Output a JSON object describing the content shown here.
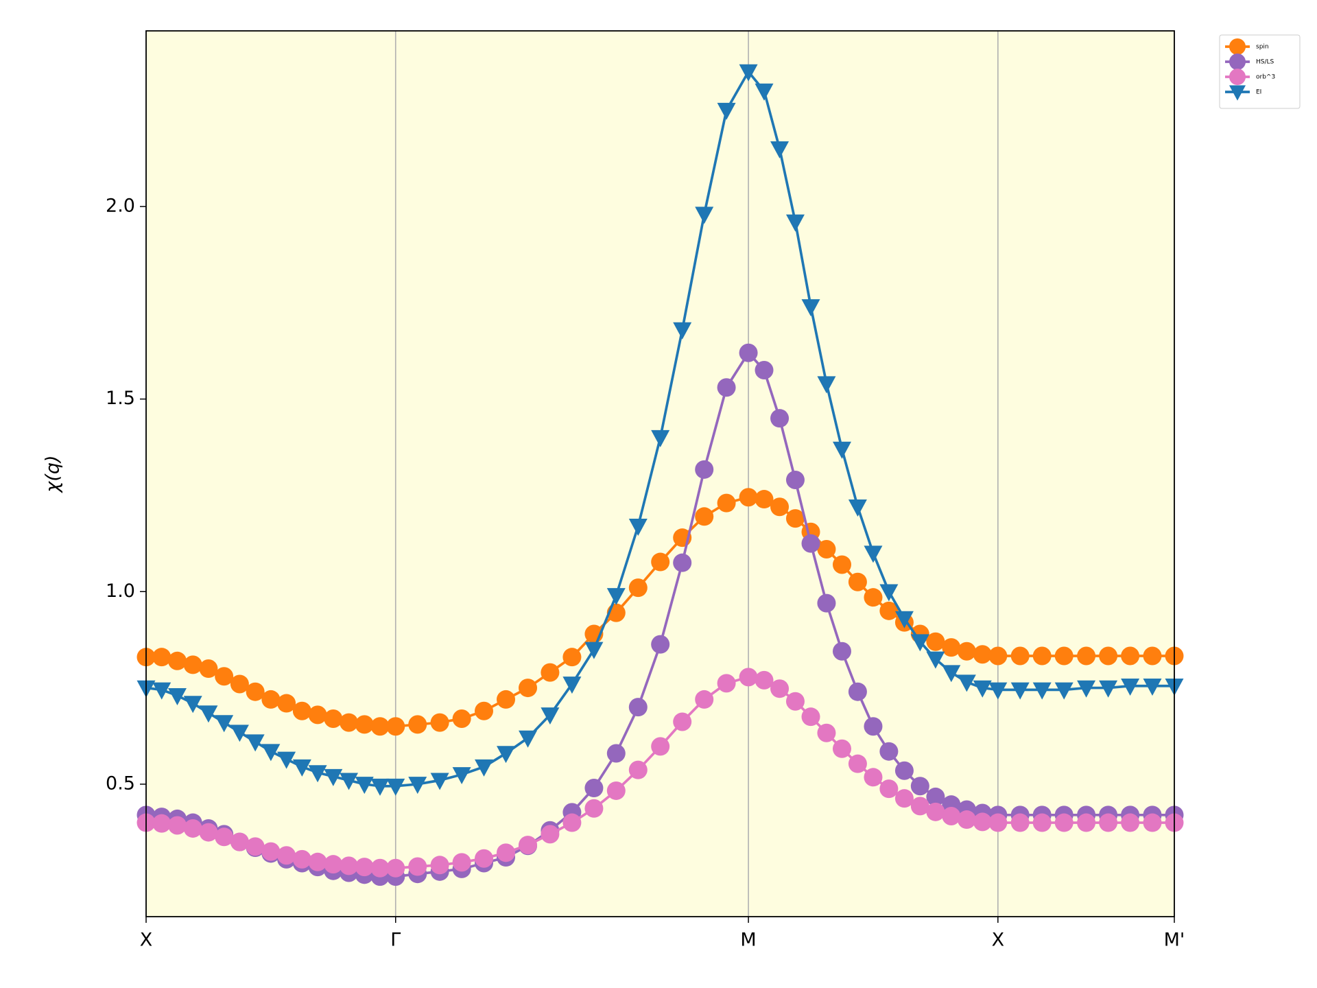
{
  "chart_data": {
    "type": "line",
    "ylabel": "χ(q)",
    "x": [
      0,
      0.0625,
      0.125,
      0.1875,
      0.25,
      0.3125,
      0.375,
      0.4375,
      0.5,
      0.5625,
      0.625,
      0.6875,
      0.75,
      0.8125,
      0.875,
      0.9375,
      1,
      1.088,
      1.177,
      1.265,
      1.354,
      1.442,
      1.53,
      1.619,
      1.707,
      1.795,
      1.884,
      1.972,
      2.061,
      2.149,
      2.237,
      2.326,
      2.414,
      2.477,
      2.539,
      2.602,
      2.664,
      2.727,
      2.789,
      2.852,
      2.914,
      2.977,
      3.039,
      3.102,
      3.164,
      3.227,
      3.289,
      3.352,
      3.414,
      3.503,
      3.591,
      3.679,
      3.768,
      3.856,
      3.944,
      4.033,
      4.121
    ],
    "series": [
      {
        "name": "spin",
        "color": "#ff7f0e",
        "marker": "circle",
        "values": [
          0.83,
          0.83,
          0.82,
          0.81,
          0.8,
          0.78,
          0.76,
          0.74,
          0.72,
          0.71,
          0.69,
          0.68,
          0.67,
          0.66,
          0.655,
          0.65,
          0.65,
          0.655,
          0.66,
          0.67,
          0.69,
          0.72,
          0.75,
          0.79,
          0.83,
          0.89,
          0.945,
          1.01,
          1.077,
          1.14,
          1.195,
          1.23,
          1.245,
          1.24,
          1.22,
          1.19,
          1.155,
          1.11,
          1.07,
          1.025,
          0.985,
          0.95,
          0.92,
          0.89,
          0.87,
          0.855,
          0.845,
          0.837,
          0.833,
          0.833,
          0.833,
          0.833,
          0.833,
          0.833,
          0.833,
          0.833,
          0.833
        ]
      },
      {
        "name": "HS/LS",
        "color": "#9467bd",
        "marker": "circle",
        "values": [
          0.42,
          0.415,
          0.41,
          0.4,
          0.385,
          0.37,
          0.35,
          0.335,
          0.32,
          0.305,
          0.295,
          0.285,
          0.275,
          0.27,
          0.265,
          0.26,
          0.26,
          0.267,
          0.273,
          0.28,
          0.295,
          0.31,
          0.34,
          0.38,
          0.427,
          0.49,
          0.58,
          0.7,
          0.863,
          1.075,
          1.317,
          1.53,
          1.62,
          1.575,
          1.45,
          1.29,
          1.125,
          0.97,
          0.845,
          0.74,
          0.65,
          0.585,
          0.535,
          0.495,
          0.467,
          0.447,
          0.434,
          0.425,
          0.42,
          0.42,
          0.42,
          0.42,
          0.42,
          0.42,
          0.42,
          0.42,
          0.42
        ]
      },
      {
        "name": "orb^3",
        "color": "#e377c2",
        "marker": "circle",
        "values": [
          0.4,
          0.398,
          0.393,
          0.385,
          0.375,
          0.363,
          0.35,
          0.338,
          0.325,
          0.315,
          0.305,
          0.298,
          0.292,
          0.288,
          0.285,
          0.282,
          0.282,
          0.286,
          0.29,
          0.297,
          0.307,
          0.322,
          0.342,
          0.37,
          0.4,
          0.437,
          0.483,
          0.537,
          0.598,
          0.662,
          0.72,
          0.762,
          0.778,
          0.77,
          0.748,
          0.715,
          0.675,
          0.633,
          0.592,
          0.553,
          0.518,
          0.488,
          0.463,
          0.443,
          0.428,
          0.417,
          0.408,
          0.402,
          0.4,
          0.4,
          0.4,
          0.4,
          0.4,
          0.4,
          0.4,
          0.4,
          0.4
        ]
      },
      {
        "name": "EI",
        "color": "#1f77b4",
        "marker": "triangle-down",
        "values": [
          0.75,
          0.745,
          0.73,
          0.71,
          0.685,
          0.66,
          0.635,
          0.61,
          0.585,
          0.565,
          0.545,
          0.53,
          0.52,
          0.51,
          0.5,
          0.495,
          0.495,
          0.5,
          0.51,
          0.525,
          0.545,
          0.58,
          0.62,
          0.68,
          0.76,
          0.85,
          0.99,
          1.17,
          1.4,
          1.68,
          1.98,
          2.25,
          2.35,
          2.3,
          2.15,
          1.96,
          1.74,
          1.54,
          1.37,
          1.22,
          1.1,
          1.0,
          0.93,
          0.87,
          0.825,
          0.79,
          0.765,
          0.75,
          0.745,
          0.745,
          0.745,
          0.745,
          0.75,
          0.75,
          0.755,
          0.755,
          0.755
        ]
      }
    ],
    "xlim": [
      0,
      4.121
    ],
    "xticks": [
      {
        "value": 0,
        "label": "X"
      },
      {
        "value": 1,
        "label": "Γ"
      },
      {
        "value": 2.414,
        "label": "M"
      },
      {
        "value": 3.414,
        "label": "X"
      },
      {
        "value": 4.121,
        "label": "M'"
      }
    ],
    "ylim": [
      0.156,
      2.456
    ],
    "yticks": [
      0.5,
      {
        "value": 1,
        "label": "1.0"
      },
      1.5,
      {
        "value": 2,
        "label": "2.0"
      }
    ],
    "xgrid": true,
    "background": "#fefddf",
    "legend": "outside-upper-right"
  }
}
